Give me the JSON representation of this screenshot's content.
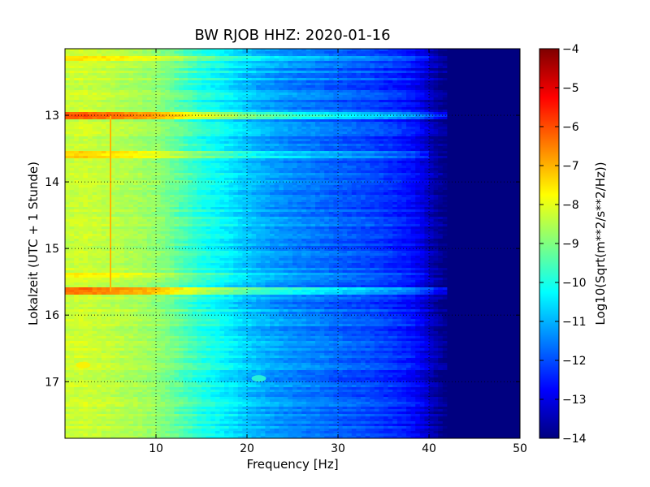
{
  "chart_data": {
    "type": "heatmap",
    "title": "BW RJOB HHZ: 2020-01-16",
    "xlabel": "Frequency [Hz]",
    "ylabel": "Lokalzeit (UTC + 1 Stunde)",
    "xlim": [
      0,
      50
    ],
    "ylim": [
      17.85,
      12.0
    ],
    "x_ticks": [
      10,
      20,
      30,
      40,
      50
    ],
    "x_tick_labels": [
      "10",
      "20",
      "30",
      "40",
      "50"
    ],
    "y_ticks": [
      13,
      14,
      15,
      16,
      17
    ],
    "y_tick_labels": [
      "13",
      "14",
      "15",
      "16",
      "17"
    ],
    "grid": true,
    "colormap": "jet",
    "colorbar": {
      "label": "Log10(Sqrt(m**2/s**2/Hz))",
      "range": [
        -14,
        -4
      ],
      "ticks": [
        -4,
        -5,
        -6,
        -7,
        -8,
        -9,
        -10,
        -11,
        -12,
        -13,
        -14
      ],
      "tick_labels": [
        "−4",
        "−5",
        "−6",
        "−7",
        "−8",
        "−9",
        "−10",
        "−11",
        "−12",
        "−13",
        "−14"
      ]
    },
    "spectral_profile": {
      "frequency_hz": [
        0,
        2,
        5,
        8,
        10,
        12,
        15,
        18,
        20,
        22,
        25,
        28,
        30,
        33,
        36,
        38,
        39,
        40,
        41,
        42,
        44,
        50
      ],
      "level_log10": [
        -8.3,
        -8.2,
        -8.4,
        -8.6,
        -8.8,
        -9.2,
        -9.9,
        -10.4,
        -10.8,
        -11.1,
        -11.4,
        -11.6,
        -11.8,
        -12.0,
        -12.3,
        -12.6,
        -12.9,
        -13.3,
        -13.7,
        -14.0,
        -14.0,
        -14.0
      ]
    },
    "features": [
      {
        "kind": "horizontal-band",
        "time_h": 13.0,
        "to_hz": 44,
        "boost": 2.2
      },
      {
        "kind": "horizontal-band",
        "time_h": 15.65,
        "to_hz": 43,
        "boost": 1.9
      },
      {
        "kind": "horizontal-band",
        "time_h": 13.6,
        "to_hz": 40,
        "boost": 0.9
      },
      {
        "kind": "horizontal-band",
        "time_h": 12.15,
        "to_hz": 40,
        "boost": 0.7
      },
      {
        "kind": "horizontal-band",
        "time_h": 15.4,
        "to_hz": 40,
        "boost": 0.7
      },
      {
        "kind": "vertical-line",
        "freq_hz": 5.0,
        "from_h": 13.0,
        "to_h": 15.65,
        "level_log10": -7.0
      },
      {
        "kind": "spot",
        "freq_hz": 2.0,
        "time_h": 16.75,
        "level_log10": -7.6
      },
      {
        "kind": "spot",
        "freq_hz": 21.3,
        "time_h": 16.95,
        "level_log10": -9.8
      }
    ]
  }
}
